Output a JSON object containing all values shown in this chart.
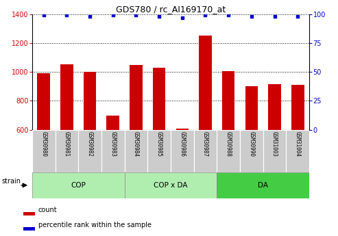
{
  "title": "GDS780 / rc_AI169170_at",
  "samples": [
    "GSM30980",
    "GSM30981",
    "GSM30982",
    "GSM30983",
    "GSM30984",
    "GSM30985",
    "GSM30986",
    "GSM30987",
    "GSM30988",
    "GSM30990",
    "GSM31003",
    "GSM31004"
  ],
  "counts": [
    990,
    1055,
    1000,
    700,
    1050,
    1030,
    610,
    1250,
    1005,
    900,
    915,
    910
  ],
  "percentiles": [
    99,
    99,
    98,
    99,
    99,
    98,
    97,
    99,
    99,
    98,
    98,
    98
  ],
  "ylim_left": [
    600,
    1400
  ],
  "ylim_right": [
    0,
    100
  ],
  "yticks_left": [
    600,
    800,
    1000,
    1200,
    1400
  ],
  "yticks_right": [
    0,
    25,
    50,
    75,
    100
  ],
  "group_info": [
    {
      "label": "COP",
      "start": 0,
      "end": 3,
      "color": "#b0eeb0"
    },
    {
      "label": "COP x DA",
      "start": 4,
      "end": 7,
      "color": "#b0eeb0"
    },
    {
      "label": "DA",
      "start": 8,
      "end": 11,
      "color": "#44cc44"
    }
  ],
  "bar_color": "#cc0000",
  "dot_color": "#0000cc",
  "tick_color_left": "#cc0000",
  "tick_color_right": "#0000cc",
  "sample_bg_color": "#cccccc",
  "legend_items": [
    {
      "label": "count",
      "color": "#cc0000"
    },
    {
      "label": "percentile rank within the sample",
      "color": "#0000cc"
    }
  ]
}
